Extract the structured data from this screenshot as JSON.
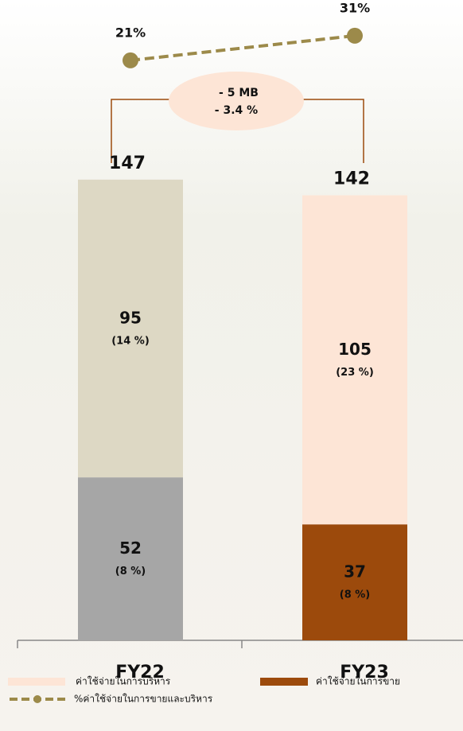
{
  "chart_data": {
    "type": "bar",
    "categories": [
      "FY22",
      "FY23"
    ],
    "series": [
      {
        "name": "ค่าใช้จ่ายในการขาย",
        "color": "#9c4a0c",
        "colors": [
          "#a6a6a6",
          "#9c4a0c"
        ],
        "values": [
          52,
          37
        ],
        "share_labels": [
          "(8 %)",
          "(8 %)"
        ]
      },
      {
        "name": "ค่าใช้จ่ายในการบริหาร",
        "color": "#fde5d6",
        "colors": [
          "#ddd8c4",
          "#fde5d6"
        ],
        "values": [
          95,
          105
        ],
        "share_labels": [
          "(14 %)",
          "(23 %)"
        ]
      }
    ],
    "totals": [
      147,
      142
    ],
    "ylim": [
      0,
      150
    ],
    "line": {
      "name": "%ค่าใช้จ่ายในการขายและบริหาร",
      "color": "#9c8a4a",
      "axis": "y2",
      "values": [
        21,
        31
      ],
      "value_labels": [
        "21%",
        "31%"
      ]
    },
    "y2lim": [
      0,
      40
    ],
    "annotation": {
      "lines": [
        "-  5 MB",
        "- 3.4 %"
      ]
    }
  }
}
